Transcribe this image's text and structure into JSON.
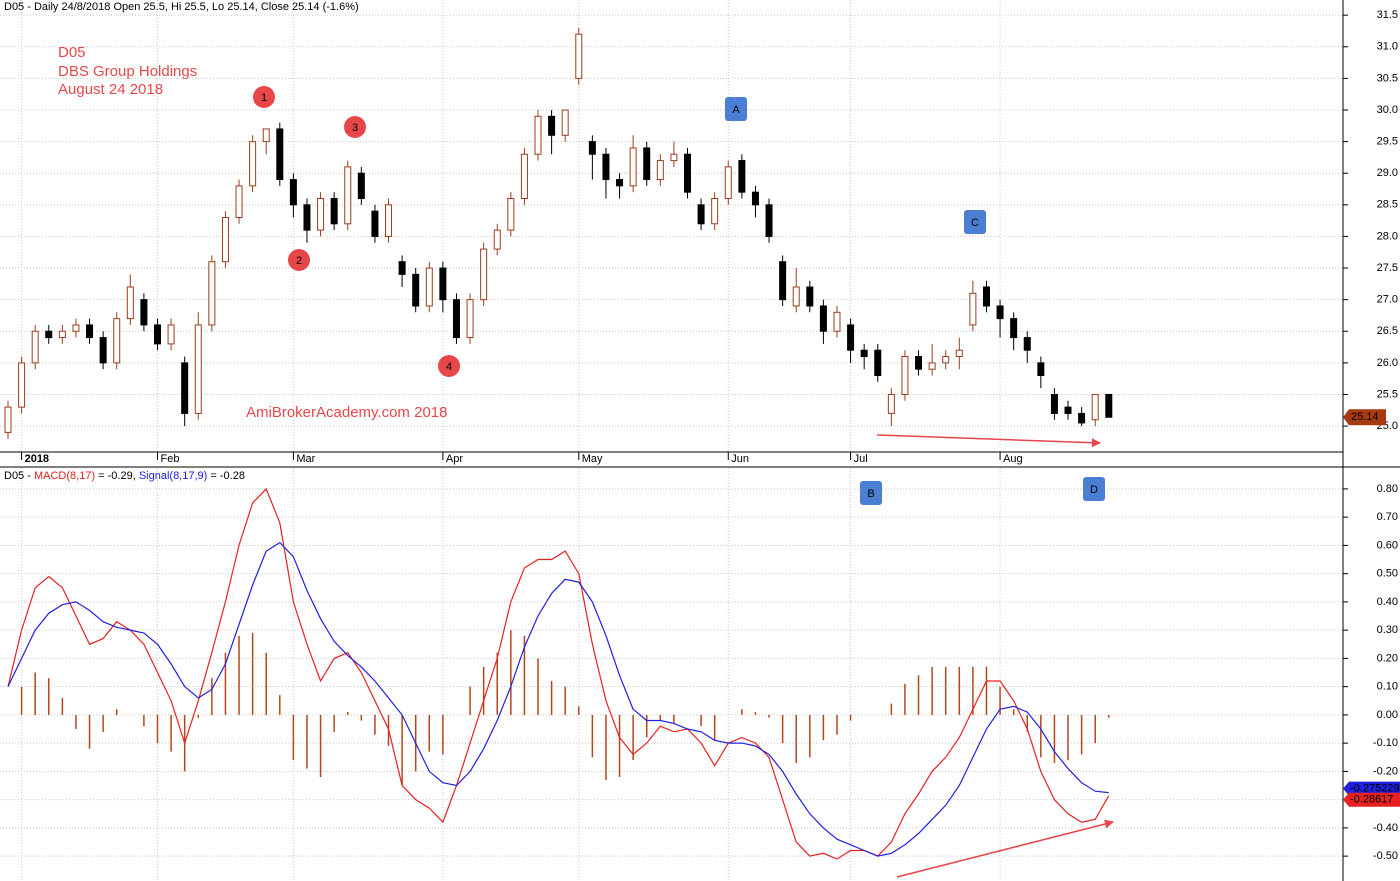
{
  "chart_data": [
    {
      "type": "candlestick",
      "title": "D05 - Daily 24/8/2018 Open 25.5, Hi 25.5, Lo 25.14, Close 25.14 (-1.6%)",
      "notes": [
        "D05",
        "DBS Group Holdings",
        "August 24 2018"
      ],
      "watermark": "AmiBrokerAcademy.com  2018",
      "annotations": [
        "1",
        "2",
        "3",
        "4",
        "A",
        "C",
        "B",
        "D"
      ],
      "categories": [
        null,
        "2018",
        null,
        null,
        null,
        null,
        null,
        null,
        null,
        null,
        null,
        "Feb",
        null,
        null,
        null,
        null,
        null,
        null,
        null,
        null,
        null,
        "Mar",
        null,
        null,
        null,
        null,
        null,
        null,
        null,
        null,
        null,
        null,
        "Apr",
        null,
        null,
        null,
        null,
        null,
        null,
        null,
        null,
        null,
        "May",
        null,
        null,
        null,
        null,
        null,
        null,
        null,
        null,
        null,
        null,
        "Jun",
        null,
        null,
        null,
        null,
        null,
        null,
        null,
        null,
        "Jul",
        null,
        null,
        null,
        null,
        null,
        null,
        null,
        null,
        null,
        null,
        "Aug",
        null,
        null,
        null,
        null,
        null,
        null,
        null,
        null
      ],
      "up_color": "#9b3d1a",
      "down_color": "#000000",
      "values": [
        [
          24.9,
          25.4,
          24.8,
          25.3
        ],
        [
          25.3,
          26.1,
          25.2,
          26.0
        ],
        [
          26.0,
          26.6,
          25.9,
          26.5
        ],
        [
          26.5,
          26.6,
          26.3,
          26.4
        ],
        [
          26.4,
          26.6,
          26.3,
          26.5
        ],
        [
          26.5,
          26.7,
          26.4,
          26.6
        ],
        [
          26.6,
          26.7,
          26.3,
          26.4
        ],
        [
          26.4,
          26.5,
          25.9,
          26.0
        ],
        [
          26.0,
          26.8,
          25.9,
          26.7
        ],
        [
          26.7,
          27.4,
          26.6,
          27.2
        ],
        [
          27.0,
          27.1,
          26.5,
          26.6
        ],
        [
          26.6,
          26.7,
          26.2,
          26.3
        ],
        [
          26.3,
          26.7,
          26.2,
          26.6
        ],
        [
          26.0,
          26.1,
          25.0,
          25.2
        ],
        [
          25.2,
          26.8,
          25.1,
          26.6
        ],
        [
          26.6,
          27.7,
          26.5,
          27.6
        ],
        [
          27.6,
          28.4,
          27.5,
          28.3
        ],
        [
          28.3,
          28.9,
          28.2,
          28.8
        ],
        [
          28.8,
          29.6,
          28.7,
          29.5
        ],
        [
          29.5,
          29.7,
          29.3,
          29.7
        ],
        [
          29.7,
          29.8,
          28.8,
          28.9
        ],
        [
          28.9,
          29.0,
          28.3,
          28.5
        ],
        [
          28.5,
          28.6,
          27.9,
          28.1
        ],
        [
          28.1,
          28.7,
          28.0,
          28.6
        ],
        [
          28.6,
          28.7,
          28.1,
          28.2
        ],
        [
          28.2,
          29.2,
          28.1,
          29.1
        ],
        [
          29.0,
          29.1,
          28.5,
          28.6
        ],
        [
          28.4,
          28.5,
          27.9,
          28.0
        ],
        [
          28.0,
          28.6,
          27.9,
          28.5
        ],
        [
          27.6,
          27.7,
          27.2,
          27.4
        ],
        [
          27.4,
          27.5,
          26.8,
          26.9
        ],
        [
          26.9,
          27.6,
          26.8,
          27.5
        ],
        [
          27.5,
          27.6,
          26.8,
          27.0
        ],
        [
          27.0,
          27.1,
          26.3,
          26.4
        ],
        [
          26.4,
          27.1,
          26.3,
          27.0
        ],
        [
          27.0,
          27.9,
          26.9,
          27.8
        ],
        [
          27.8,
          28.2,
          27.7,
          28.1
        ],
        [
          28.1,
          28.7,
          28.0,
          28.6
        ],
        [
          28.6,
          29.4,
          28.5,
          29.3
        ],
        [
          29.3,
          30.0,
          29.2,
          29.9
        ],
        [
          29.9,
          30.0,
          29.3,
          29.6
        ],
        [
          29.6,
          30.0,
          29.5,
          30.0
        ],
        [
          30.5,
          31.3,
          30.4,
          31.2
        ],
        [
          29.5,
          29.6,
          28.9,
          29.3
        ],
        [
          29.3,
          29.4,
          28.6,
          28.9
        ],
        [
          28.9,
          29.0,
          28.6,
          28.8
        ],
        [
          28.8,
          29.6,
          28.7,
          29.4
        ],
        [
          29.4,
          29.5,
          28.8,
          28.9
        ],
        [
          28.9,
          29.3,
          28.8,
          29.2
        ],
        [
          29.2,
          29.5,
          29.1,
          29.3
        ],
        [
          29.3,
          29.4,
          28.6,
          28.7
        ],
        [
          28.5,
          28.6,
          28.1,
          28.2
        ],
        [
          28.2,
          28.7,
          28.1,
          28.6
        ],
        [
          28.6,
          29.2,
          28.5,
          29.1
        ],
        [
          29.2,
          29.3,
          28.6,
          28.7
        ],
        [
          28.7,
          28.8,
          28.3,
          28.5
        ],
        [
          28.5,
          28.6,
          27.9,
          28.0
        ],
        [
          27.6,
          27.7,
          26.9,
          27.0
        ],
        [
          26.9,
          27.5,
          26.8,
          27.2
        ],
        [
          27.2,
          27.3,
          26.8,
          26.9
        ],
        [
          26.9,
          27.0,
          26.3,
          26.5
        ],
        [
          26.5,
          26.9,
          26.4,
          26.8
        ],
        [
          26.6,
          26.7,
          26.0,
          26.2
        ],
        [
          26.2,
          26.3,
          25.9,
          26.1
        ],
        [
          26.2,
          26.3,
          25.7,
          25.8
        ],
        [
          25.2,
          25.6,
          25.0,
          25.5
        ],
        [
          25.5,
          26.2,
          25.4,
          26.1
        ],
        [
          26.1,
          26.2,
          25.8,
          25.9
        ],
        [
          25.9,
          26.3,
          25.8,
          26.0
        ],
        [
          26.0,
          26.2,
          25.9,
          26.1
        ],
        [
          26.1,
          26.4,
          25.9,
          26.2
        ],
        [
          26.6,
          27.3,
          26.5,
          27.1
        ],
        [
          27.2,
          27.3,
          26.8,
          26.9
        ],
        [
          26.9,
          27.0,
          26.4,
          26.7
        ],
        [
          26.7,
          26.8,
          26.2,
          26.4
        ],
        [
          26.4,
          26.5,
          26.0,
          26.2
        ],
        [
          26.0,
          26.1,
          25.6,
          25.8
        ],
        [
          25.5,
          25.6,
          25.1,
          25.2
        ],
        [
          25.3,
          25.4,
          25.1,
          25.2
        ],
        [
          25.2,
          25.3,
          25.0,
          25.05
        ],
        [
          25.1,
          25.5,
          25.0,
          25.5
        ],
        [
          25.5,
          25.5,
          25.14,
          25.14
        ]
      ],
      "ylim": [
        24.59,
        31.74
      ],
      "yticks": [
        {
          "value": 25,
          "label": "25.0"
        },
        25.5,
        {
          "value": 26,
          "label": "26.0"
        },
        26.5,
        {
          "value": 27,
          "label": "27.0"
        },
        27.5,
        {
          "value": 28,
          "label": "28.0"
        },
        28.5,
        {
          "value": 29,
          "label": "29.0"
        },
        29.5,
        {
          "value": 30,
          "label": "30.0"
        },
        30.5,
        {
          "value": 31,
          "label": "31.0"
        },
        31.5
      ],
      "grid": true
    },
    {
      "type": "line",
      "title": "D05 -",
      "series": [
        {
          "name": "MACD(8,17)",
          "header_value": "= -0.29,",
          "color": "#e82020",
          "values": [
            0.1,
            0.3,
            0.45,
            0.49,
            0.45,
            0.35,
            0.25,
            0.27,
            0.33,
            0.3,
            0.25,
            0.15,
            0.05,
            -0.1,
            0.05,
            0.22,
            0.4,
            0.6,
            0.75,
            0.8,
            0.68,
            0.4,
            0.25,
            0.12,
            0.2,
            0.22,
            0.15,
            0.05,
            -0.05,
            -0.25,
            -0.3,
            -0.33,
            -0.38,
            -0.25,
            -0.1,
            0.05,
            0.2,
            0.4,
            0.52,
            0.55,
            0.55,
            0.58,
            0.5,
            0.25,
            0.05,
            -0.08,
            -0.14,
            -0.1,
            -0.04,
            -0.06,
            -0.05,
            -0.1,
            -0.18,
            -0.1,
            -0.08,
            -0.1,
            -0.15,
            -0.3,
            -0.45,
            -0.5,
            -0.49,
            -0.51,
            -0.48,
            -0.48,
            -0.5,
            -0.45,
            -0.35,
            -0.28,
            -0.2,
            -0.15,
            -0.08,
            0.02,
            0.12,
            0.12,
            0.05,
            -0.05,
            -0.2,
            -0.3,
            -0.35,
            -0.38,
            -0.37,
            -0.28617
          ]
        },
        {
          "name": "Signal(8,17,9)",
          "header_value": "= -0.28",
          "color": "#2020e0",
          "values": [
            0.1,
            0.2,
            0.3,
            0.36,
            0.39,
            0.4,
            0.37,
            0.33,
            0.31,
            0.3,
            0.29,
            0.25,
            0.18,
            0.1,
            0.06,
            0.09,
            0.18,
            0.32,
            0.46,
            0.58,
            0.61,
            0.56,
            0.44,
            0.34,
            0.26,
            0.21,
            0.17,
            0.12,
            0.06,
            0.0,
            -0.1,
            -0.2,
            -0.24,
            -0.25,
            -0.2,
            -0.12,
            -0.02,
            0.1,
            0.24,
            0.35,
            0.43,
            0.48,
            0.47,
            0.4,
            0.28,
            0.14,
            0.02,
            -0.02,
            -0.02,
            -0.03,
            -0.05,
            -0.06,
            -0.09,
            -0.1,
            -0.1,
            -0.11,
            -0.14,
            -0.2,
            -0.28,
            -0.35,
            -0.4,
            -0.44,
            -0.46,
            -0.48,
            -0.5,
            -0.49,
            -0.46,
            -0.42,
            -0.37,
            -0.32,
            -0.25,
            -0.15,
            -0.05,
            0.02,
            0.03,
            0.01,
            -0.05,
            -0.13,
            -0.19,
            -0.24,
            -0.27,
            -0.275229
          ]
        }
      ],
      "histogram": {
        "color": "#b5451b",
        "values": [
          0.0,
          0.1,
          0.15,
          0.13,
          0.06,
          -0.05,
          -0.12,
          -0.06,
          0.02,
          0.0,
          -0.04,
          -0.1,
          -0.13,
          -0.2,
          -0.01,
          0.13,
          0.22,
          0.28,
          0.29,
          0.22,
          0.07,
          -0.16,
          -0.19,
          -0.22,
          -0.06,
          0.01,
          -0.02,
          -0.07,
          -0.11,
          -0.25,
          -0.2,
          -0.13,
          -0.14,
          0.0,
          0.1,
          0.17,
          0.22,
          0.3,
          0.28,
          0.2,
          0.12,
          0.1,
          0.03,
          -0.15,
          -0.23,
          -0.22,
          -0.16,
          -0.08,
          -0.02,
          -0.03,
          0.0,
          -0.04,
          -0.09,
          0.0,
          0.02,
          0.01,
          -0.01,
          -0.1,
          -0.17,
          -0.15,
          -0.09,
          -0.07,
          -0.02,
          0.0,
          0.0,
          0.04,
          0.11,
          0.14,
          0.17,
          0.17,
          0.17,
          0.17,
          0.17,
          0.1,
          0.02,
          -0.06,
          -0.15,
          -0.17,
          -0.16,
          -0.14,
          -0.1,
          -0.01
        ]
      },
      "ylim": [
        -0.588,
        0.874
      ],
      "yticks": [
        {
          "value": -0.5,
          "label": "-0.50"
        },
        {
          "value": -0.4,
          "label": "-0.40"
        },
        {
          "value": -0.3,
          "label": "-0.30"
        },
        {
          "value": -0.2,
          "label": "-0.20"
        },
        {
          "value": -0.1,
          "label": "-0.10"
        },
        {
          "value": 0,
          "label": "0.00"
        },
        {
          "value": 0.1,
          "label": "0.10"
        },
        {
          "value": 0.2,
          "label": "0.20"
        },
        {
          "value": 0.3,
          "label": "0.30"
        },
        {
          "value": 0.4,
          "label": "0.40"
        },
        {
          "value": 0.5,
          "label": "0.50"
        },
        {
          "value": 0.6,
          "label": "0.60"
        },
        {
          "value": 0.7,
          "label": "0.70"
        },
        {
          "value": 0.8,
          "label": "0.80"
        }
      ],
      "grid": true
    }
  ]
}
